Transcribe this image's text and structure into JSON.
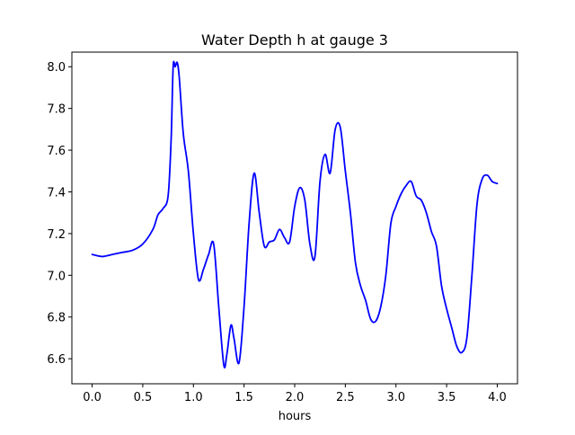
{
  "chart_data": {
    "type": "line",
    "title": "Water Depth h at gauge 3",
    "xlabel": "hours",
    "ylabel": "",
    "xlim": [
      -0.2,
      4.2
    ],
    "ylim": [
      6.48,
      8.07
    ],
    "grid": false,
    "x_ticks": [
      0.0,
      0.5,
      1.0,
      1.5,
      2.0,
      2.5,
      3.0,
      3.5,
      4.0
    ],
    "x_tick_labels": [
      "0.0",
      "0.5",
      "1.0",
      "1.5",
      "2.0",
      "2.5",
      "3.0",
      "3.5",
      "4.0"
    ],
    "y_ticks": [
      6.6,
      6.8,
      7.0,
      7.2,
      7.4,
      7.6,
      7.8,
      8.0
    ],
    "y_tick_labels": [
      "6.6",
      "6.8",
      "7.0",
      "7.2",
      "7.4",
      "7.6",
      "7.8",
      "8.0"
    ],
    "series": [
      {
        "color": "#0000ff",
        "x": [
          0.0,
          0.1,
          0.2,
          0.3,
          0.4,
          0.5,
          0.6,
          0.65,
          0.7,
          0.75,
          0.78,
          0.8,
          0.82,
          0.84,
          0.86,
          0.9,
          0.95,
          1.0,
          1.05,
          1.1,
          1.15,
          1.2,
          1.25,
          1.3,
          1.33,
          1.37,
          1.4,
          1.45,
          1.5,
          1.55,
          1.6,
          1.65,
          1.7,
          1.75,
          1.8,
          1.85,
          1.9,
          1.95,
          2.0,
          2.05,
          2.1,
          2.15,
          2.2,
          2.25,
          2.3,
          2.35,
          2.4,
          2.45,
          2.5,
          2.55,
          2.6,
          2.65,
          2.7,
          2.75,
          2.8,
          2.85,
          2.9,
          2.95,
          3.0,
          3.05,
          3.1,
          3.15,
          3.2,
          3.25,
          3.3,
          3.35,
          3.4,
          3.45,
          3.5,
          3.55,
          3.6,
          3.65,
          3.7,
          3.75,
          3.8,
          3.85,
          3.9,
          3.95,
          4.0
        ],
        "y": [
          7.1,
          7.09,
          7.1,
          7.11,
          7.12,
          7.15,
          7.22,
          7.29,
          7.32,
          7.38,
          7.65,
          8.0,
          8.0,
          8.02,
          7.95,
          7.68,
          7.5,
          7.2,
          6.98,
          7.03,
          7.1,
          7.15,
          6.85,
          6.57,
          6.62,
          6.76,
          6.7,
          6.58,
          6.85,
          7.25,
          7.49,
          7.3,
          7.14,
          7.16,
          7.17,
          7.22,
          7.18,
          7.16,
          7.33,
          7.42,
          7.36,
          7.15,
          7.09,
          7.45,
          7.58,
          7.49,
          7.7,
          7.71,
          7.5,
          7.3,
          7.06,
          6.95,
          6.88,
          6.79,
          6.78,
          6.85,
          7.0,
          7.25,
          7.33,
          7.39,
          7.43,
          7.45,
          7.38,
          7.36,
          7.3,
          7.21,
          7.14,
          6.95,
          6.84,
          6.75,
          6.66,
          6.63,
          6.7,
          7.0,
          7.34,
          7.46,
          7.48,
          7.45,
          7.44
        ]
      }
    ]
  }
}
